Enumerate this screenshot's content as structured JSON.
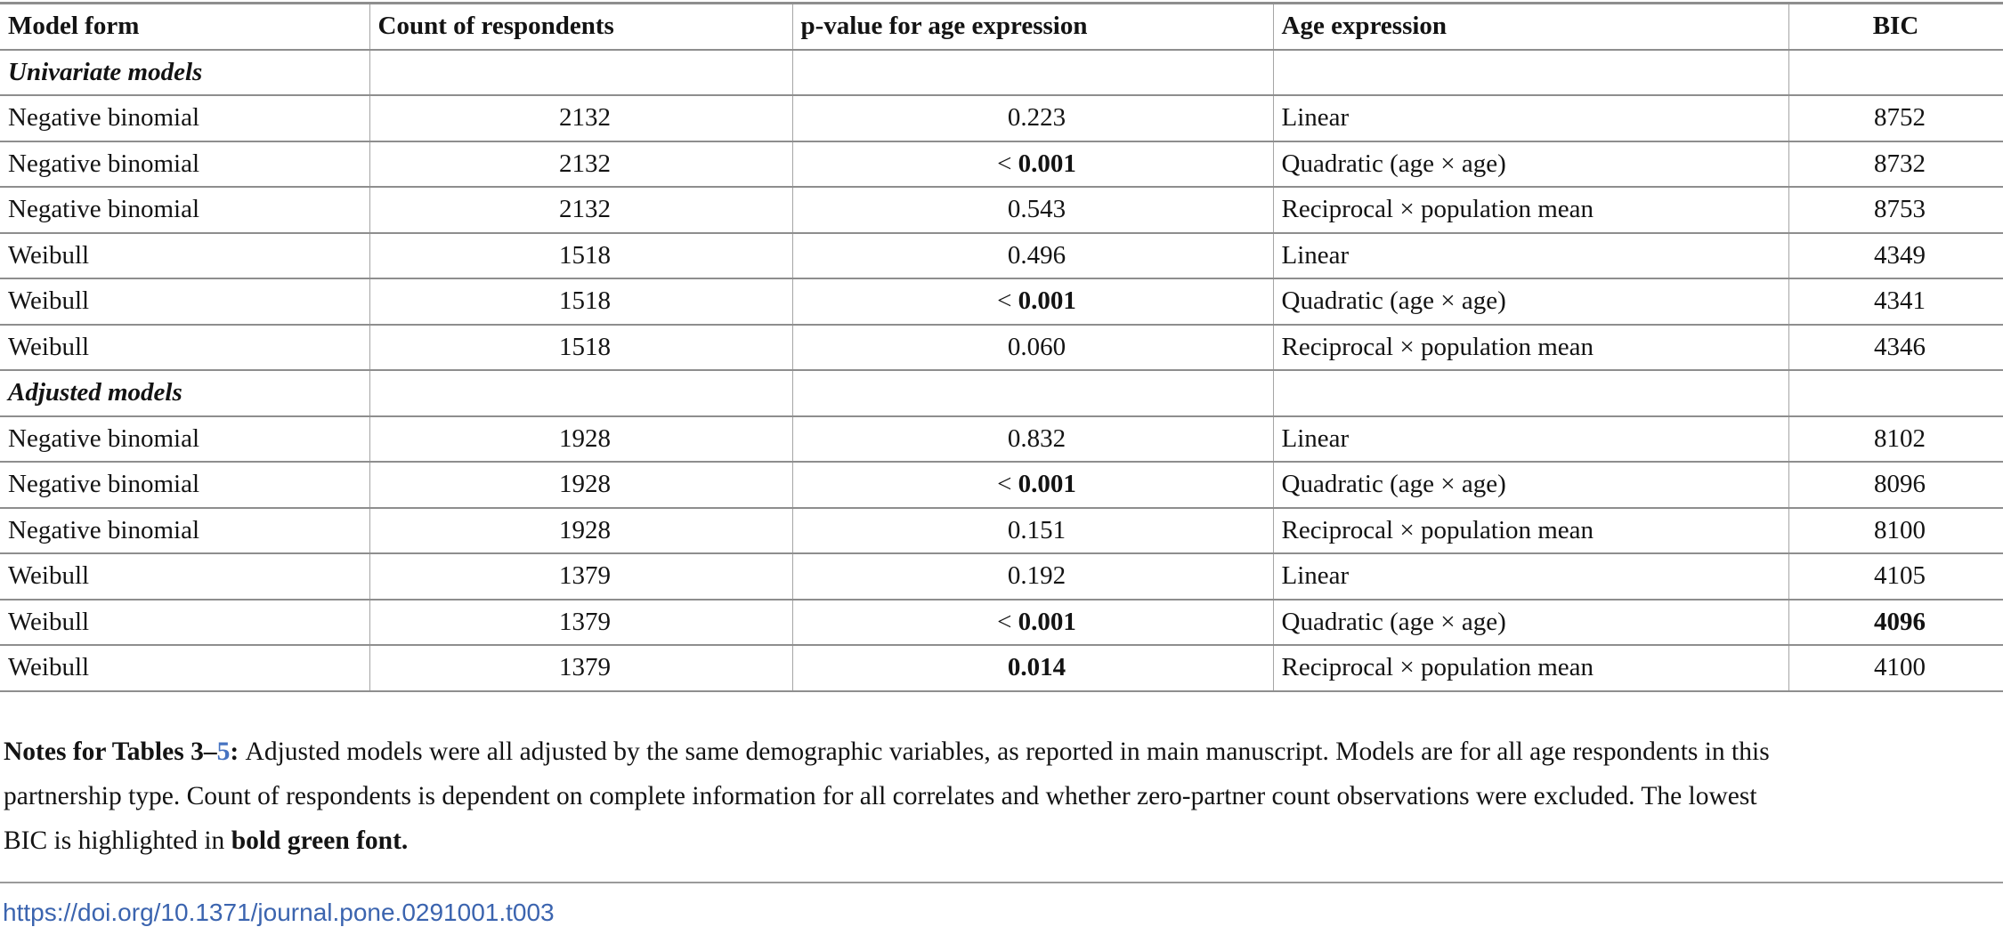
{
  "colors": {
    "link_blue": "#3b64af",
    "notes_link_blue": "#4673c1",
    "border_gray": "#8e8e8e",
    "text_black": "#131313"
  },
  "table": {
    "columns": [
      {
        "label": "Model form",
        "align": "left"
      },
      {
        "label": "Count of respondents",
        "align": "left"
      },
      {
        "label": "p-value for age expression",
        "align": "left"
      },
      {
        "label": "Age expression",
        "align": "left"
      },
      {
        "label": "BIC",
        "align": "center"
      }
    ],
    "rows": [
      {
        "type": "section",
        "model_form": "Univariate models"
      },
      {
        "type": "data",
        "model_form": "Negative binomial",
        "count": "2132",
        "p_prefix": "",
        "p_value": "0.223",
        "p_bold": false,
        "age_expression": "Linear",
        "bic": "8752",
        "bic_bold": false
      },
      {
        "type": "data",
        "model_form": "Negative binomial",
        "count": "2132",
        "p_prefix": "< ",
        "p_value": "0.001",
        "p_bold": true,
        "age_expression": "Quadratic (age × age)",
        "bic": "8732",
        "bic_bold": false
      },
      {
        "type": "data",
        "model_form": "Negative binomial",
        "count": "2132",
        "p_prefix": "",
        "p_value": "0.543",
        "p_bold": false,
        "age_expression": "Reciprocal × population mean",
        "bic": "8753",
        "bic_bold": false
      },
      {
        "type": "data",
        "model_form": "Weibull",
        "count": "1518",
        "p_prefix": "",
        "p_value": "0.496",
        "p_bold": false,
        "age_expression": "Linear",
        "bic": "4349",
        "bic_bold": false
      },
      {
        "type": "data",
        "model_form": "Weibull",
        "count": "1518",
        "p_prefix": "< ",
        "p_value": "0.001",
        "p_bold": true,
        "age_expression": "Quadratic (age × age)",
        "bic": "4341",
        "bic_bold": false
      },
      {
        "type": "data",
        "model_form": "Weibull",
        "count": "1518",
        "p_prefix": "",
        "p_value": "0.060",
        "p_bold": false,
        "age_expression": "Reciprocal × population mean",
        "bic": "4346",
        "bic_bold": false
      },
      {
        "type": "section",
        "model_form": "Adjusted models"
      },
      {
        "type": "data",
        "model_form": "Negative binomial",
        "count": "1928",
        "p_prefix": "",
        "p_value": "0.832",
        "p_bold": false,
        "age_expression": "Linear",
        "bic": "8102",
        "bic_bold": false
      },
      {
        "type": "data",
        "model_form": "Negative binomial",
        "count": "1928",
        "p_prefix": "< ",
        "p_value": "0.001",
        "p_bold": true,
        "age_expression": "Quadratic (age × age)",
        "bic": "8096",
        "bic_bold": false
      },
      {
        "type": "data",
        "model_form": "Negative binomial",
        "count": "1928",
        "p_prefix": "",
        "p_value": "0.151",
        "p_bold": false,
        "age_expression": "Reciprocal × population mean",
        "bic": "8100",
        "bic_bold": false
      },
      {
        "type": "data",
        "model_form": "Weibull",
        "count": "1379",
        "p_prefix": "",
        "p_value": "0.192",
        "p_bold": false,
        "age_expression": "Linear",
        "bic": "4105",
        "bic_bold": false
      },
      {
        "type": "data",
        "model_form": "Weibull",
        "count": "1379",
        "p_prefix": "< ",
        "p_value": "0.001",
        "p_bold": true,
        "age_expression": "Quadratic (age × age)",
        "bic": "4096",
        "bic_bold": true
      },
      {
        "type": "data",
        "model_form": "Weibull",
        "count": "1379",
        "p_prefix": "",
        "p_value": "0.014",
        "p_bold": true,
        "age_expression": "Reciprocal × population mean",
        "bic": "4100",
        "bic_bold": false
      }
    ]
  },
  "notes": {
    "lines": [
      [
        {
          "text": "Notes for Tables 3–",
          "bold": true,
          "blue": false
        },
        {
          "text": "5",
          "bold": true,
          "blue": true
        },
        {
          "text": ": ",
          "bold": true,
          "blue": false
        },
        {
          "text": "Adjusted models were all adjusted by the same demographic variables, as reported in main manuscript. Models are for all age respondents in this",
          "bold": false,
          "blue": false
        }
      ],
      [
        {
          "text": "partnership type. Count of respondents is dependent on complete information for all correlates and whether zero-partner count observations were excluded. The lowest",
          "bold": false,
          "blue": false
        }
      ],
      [
        {
          "text": "BIC is highlighted in ",
          "bold": false,
          "blue": false
        },
        {
          "text": "bold green font.",
          "bold": true,
          "blue": false
        }
      ]
    ]
  },
  "doi_link": "https://doi.org/10.1371/journal.pone.0291001.t003"
}
